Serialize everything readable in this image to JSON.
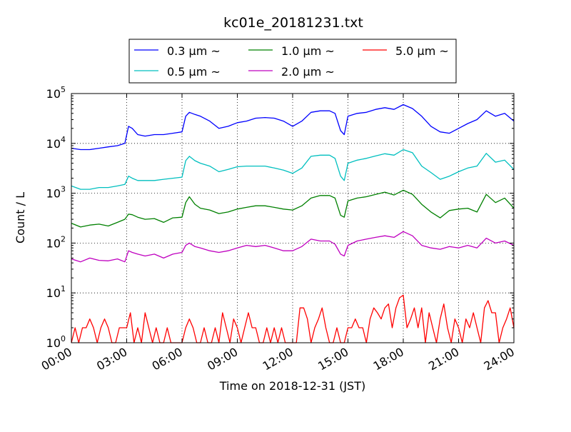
{
  "chart_data": {
    "type": "line",
    "title": "kc01e_20181231.txt",
    "xlabel": "Time on 2018-12-31 (JST)",
    "ylabel": "Count / L",
    "yscale": "log",
    "ylim": [
      1,
      100000
    ],
    "xlim_hours": [
      0,
      24
    ],
    "grid": true,
    "legend_placement": "top-center, above plot",
    "x_tick_labels": [
      "00:00",
      "03:00",
      "06:00",
      "09:00",
      "12:00",
      "15:00",
      "18:00",
      "21:00",
      "24:00"
    ],
    "y_tick_labels": [
      {
        "base": "10",
        "exp": "0"
      },
      {
        "base": "10",
        "exp": "1"
      },
      {
        "base": "10",
        "exp": "2"
      },
      {
        "base": "10",
        "exp": "3"
      },
      {
        "base": "10",
        "exp": "4"
      },
      {
        "base": "10",
        "exp": "5"
      }
    ],
    "series": [
      {
        "name": "0.3 μm ~",
        "color": "#0000ff",
        "x": [
          0,
          0.5,
          1,
          1.5,
          2,
          2.5,
          2.9,
          3.1,
          3.3,
          3.6,
          4,
          4.5,
          5,
          5.5,
          6,
          6.2,
          6.4,
          6.7,
          7,
          7.5,
          8,
          8.5,
          9,
          9.5,
          10,
          10.5,
          11,
          11.5,
          12,
          12.5,
          13,
          13.5,
          14,
          14.3,
          14.6,
          14.8,
          15,
          15.5,
          16,
          16.5,
          17,
          17.5,
          18,
          18.5,
          19,
          19.5,
          20,
          20.5,
          21,
          21.5,
          22,
          22.5,
          23,
          23.5,
          24
        ],
        "values": [
          8000,
          7500,
          7500,
          8000,
          8500,
          9000,
          10000,
          22000,
          20000,
          15000,
          14000,
          15000,
          15000,
          16000,
          17000,
          35000,
          42000,
          38000,
          35000,
          28000,
          20000,
          22000,
          26000,
          28000,
          32000,
          33000,
          32000,
          28000,
          22000,
          28000,
          42000,
          45000,
          45000,
          40000,
          18000,
          15000,
          35000,
          40000,
          42000,
          48000,
          52000,
          48000,
          60000,
          50000,
          35000,
          22000,
          17000,
          16000,
          20000,
          25000,
          30000,
          45000,
          35000,
          40000,
          28000
        ]
      },
      {
        "name": "0.5 μm ~",
        "color": "#00bfbf",
        "x": [
          0,
          0.5,
          1,
          1.5,
          2,
          2.5,
          2.9,
          3.1,
          3.3,
          3.6,
          4,
          4.5,
          5,
          5.5,
          6,
          6.2,
          6.4,
          6.7,
          7,
          7.5,
          8,
          8.5,
          9,
          9.5,
          10,
          10.5,
          11,
          11.5,
          12,
          12.5,
          13,
          13.5,
          14,
          14.3,
          14.6,
          14.8,
          15,
          15.5,
          16,
          16.5,
          17,
          17.5,
          18,
          18.5,
          19,
          19.5,
          20,
          20.5,
          21,
          21.5,
          22,
          22.5,
          23,
          23.5,
          24
        ],
        "values": [
          1400,
          1200,
          1200,
          1300,
          1300,
          1400,
          1500,
          2200,
          2000,
          1800,
          1800,
          1800,
          1900,
          2000,
          2100,
          4500,
          5500,
          4500,
          4000,
          3500,
          2700,
          3000,
          3400,
          3500,
          3500,
          3500,
          3200,
          2900,
          2500,
          3200,
          5500,
          5800,
          5800,
          5000,
          2200,
          1800,
          4000,
          4600,
          5000,
          5600,
          6200,
          5800,
          7500,
          6500,
          3500,
          2600,
          1900,
          2200,
          2700,
          3200,
          3500,
          6300,
          4200,
          4600,
          3000
        ]
      },
      {
        "name": "1.0 μm ~",
        "color": "#008000",
        "x": [
          0,
          0.5,
          1,
          1.5,
          2,
          2.5,
          2.9,
          3.1,
          3.3,
          3.6,
          4,
          4.5,
          5,
          5.5,
          6,
          6.2,
          6.4,
          6.7,
          7,
          7.5,
          8,
          8.5,
          9,
          9.5,
          10,
          10.5,
          11,
          11.5,
          12,
          12.5,
          13,
          13.5,
          14,
          14.3,
          14.6,
          14.8,
          15,
          15.5,
          16,
          16.5,
          17,
          17.5,
          18,
          18.5,
          19,
          19.5,
          20,
          20.5,
          21,
          21.5,
          22,
          22.5,
          23,
          23.5,
          24
        ],
        "values": [
          250,
          210,
          230,
          240,
          220,
          260,
          300,
          380,
          370,
          330,
          300,
          310,
          260,
          320,
          330,
          650,
          850,
          600,
          500,
          460,
          390,
          420,
          480,
          520,
          560,
          560,
          520,
          480,
          460,
          560,
          800,
          900,
          900,
          800,
          360,
          330,
          700,
          800,
          850,
          950,
          1050,
          920,
          1150,
          950,
          600,
          420,
          320,
          450,
          480,
          500,
          420,
          950,
          650,
          800,
          500
        ]
      },
      {
        "name": "2.0 μm ~",
        "color": "#bf00bf",
        "x": [
          0,
          0.5,
          1,
          1.5,
          2,
          2.5,
          2.9,
          3.1,
          3.3,
          3.6,
          4,
          4.5,
          5,
          5.5,
          6,
          6.2,
          6.4,
          6.7,
          7,
          7.5,
          8,
          8.5,
          9,
          9.5,
          10,
          10.5,
          11,
          11.5,
          12,
          12.5,
          13,
          13.5,
          14,
          14.3,
          14.6,
          14.8,
          15,
          15.5,
          16,
          16.5,
          17,
          17.5,
          18,
          18.5,
          19,
          19.5,
          20,
          20.5,
          21,
          21.5,
          22,
          22.5,
          23,
          23.5,
          24
        ],
        "values": [
          48,
          42,
          50,
          45,
          44,
          48,
          42,
          70,
          65,
          60,
          55,
          60,
          50,
          60,
          65,
          90,
          100,
          85,
          80,
          70,
          65,
          70,
          80,
          90,
          85,
          90,
          80,
          70,
          70,
          85,
          120,
          110,
          110,
          95,
          60,
          55,
          90,
          110,
          120,
          130,
          140,
          130,
          170,
          140,
          90,
          80,
          75,
          85,
          80,
          90,
          80,
          125,
          100,
          110,
          90
        ]
      },
      {
        "name": "5.0 μm ~",
        "color": "#ff0000",
        "x": [
          0,
          0.2,
          0.4,
          0.6,
          0.8,
          1,
          1.2,
          1.4,
          1.6,
          1.8,
          2,
          2.2,
          2.4,
          2.6,
          2.8,
          3,
          3.2,
          3.4,
          3.6,
          3.8,
          4,
          4.2,
          4.4,
          4.6,
          4.8,
          5,
          5.2,
          5.4,
          5.6,
          5.8,
          6,
          6.2,
          6.4,
          6.6,
          6.8,
          7,
          7.2,
          7.4,
          7.6,
          7.8,
          8,
          8.2,
          8.4,
          8.6,
          8.8,
          9,
          9.2,
          9.4,
          9.6,
          9.8,
          10,
          10.2,
          10.4,
          10.6,
          10.8,
          11,
          11.2,
          11.4,
          11.6,
          11.8,
          12,
          12.2,
          12.4,
          12.6,
          12.8,
          13,
          13.2,
          13.4,
          13.6,
          13.8,
          14,
          14.2,
          14.4,
          14.6,
          14.8,
          15,
          15.2,
          15.4,
          15.6,
          15.8,
          16,
          16.2,
          16.4,
          16.6,
          16.8,
          17,
          17.2,
          17.4,
          17.6,
          17.8,
          18,
          18.2,
          18.4,
          18.6,
          18.8,
          19,
          19.2,
          19.4,
          19.6,
          19.8,
          20,
          20.2,
          20.4,
          20.6,
          20.8,
          21,
          21.2,
          21.4,
          21.6,
          21.8,
          22,
          22.2,
          22.4,
          22.6,
          22.8,
          23,
          23.2,
          23.4,
          23.6,
          23.8,
          24
        ],
        "values": [
          1,
          2,
          1,
          2,
          2,
          3,
          2,
          1,
          2,
          3,
          2,
          1,
          1,
          2,
          2,
          2,
          4,
          1,
          2,
          1,
          4,
          2,
          1,
          2,
          1,
          1,
          2,
          1,
          1,
          1,
          1,
          2,
          3,
          2,
          1,
          1,
          2,
          1,
          1,
          2,
          1,
          4,
          2,
          1,
          3,
          2,
          1,
          2,
          4,
          2,
          2,
          1,
          1,
          2,
          1,
          2,
          1,
          2,
          1,
          1,
          1,
          1,
          5,
          5,
          3,
          1,
          2,
          3,
          5,
          2,
          1,
          1,
          2,
          1,
          1,
          2,
          2,
          3,
          2,
          2,
          1,
          3,
          5,
          4,
          3,
          5,
          6,
          2,
          5,
          8,
          9,
          2,
          3,
          5,
          2,
          5,
          1,
          4,
          2,
          1,
          3,
          6,
          2,
          1,
          3,
          2,
          1,
          3,
          2,
          4,
          2,
          1,
          5,
          7,
          4,
          4,
          1,
          2,
          3,
          5,
          2
        ]
      }
    ]
  }
}
